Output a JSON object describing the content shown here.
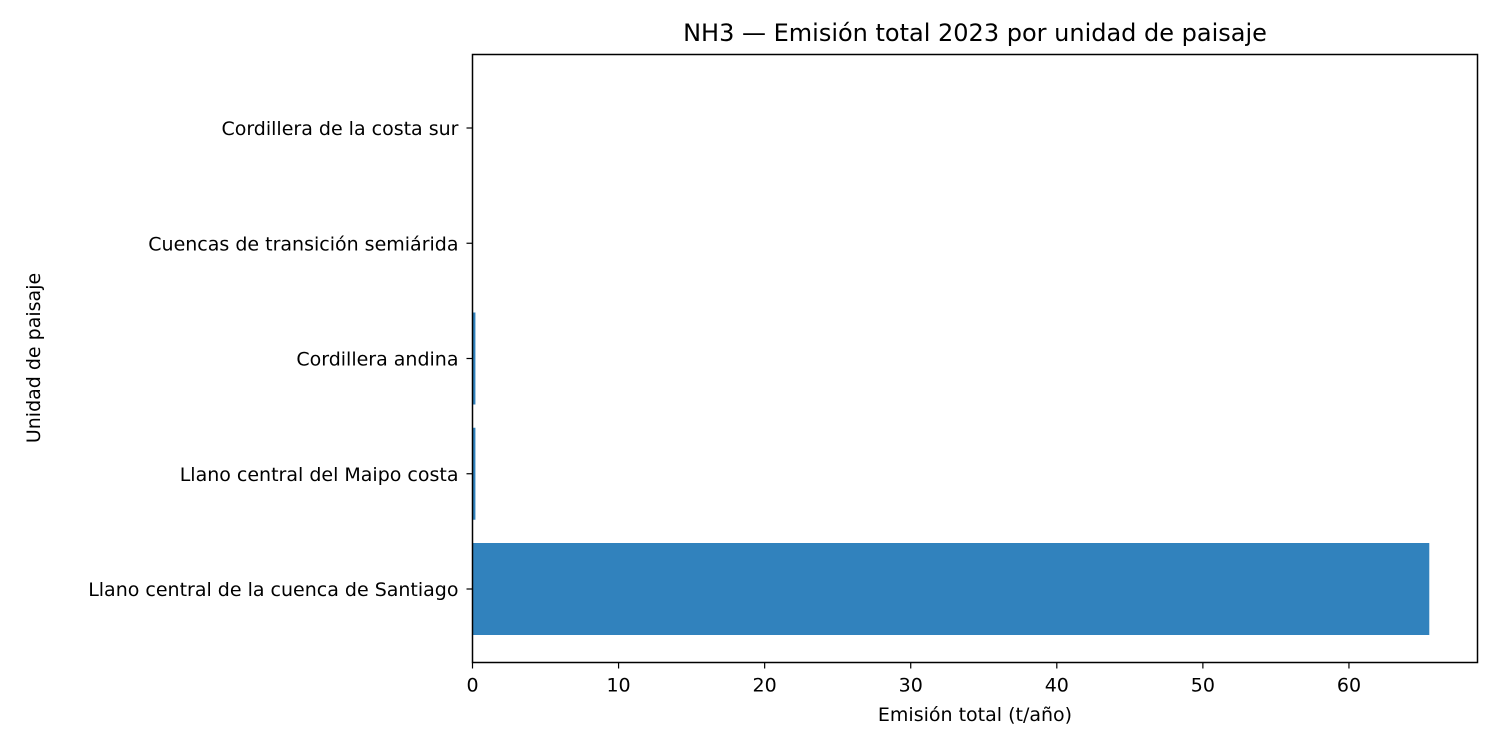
{
  "chart_data": {
    "type": "bar",
    "orientation": "horizontal",
    "title": "NH3 — Emisión total 2023 por unidad de paisaje",
    "xlabel": "Emisión total (t/año)",
    "ylabel": "Unidad de paisaje",
    "categories": [
      "Llano central de la cuenca de Santiago",
      "Llano central del Maipo costa",
      "Cordillera andina",
      "Cuencas de transición semiárida",
      "Cordillera de la costa sur"
    ],
    "values": [
      65.5,
      0.2,
      0.2,
      0.0,
      0.0
    ],
    "xlim": [
      0,
      68.8
    ],
    "xticks": [
      0,
      10,
      20,
      30,
      40,
      50,
      60
    ],
    "grid": false,
    "bar_color": "#3182bd"
  }
}
